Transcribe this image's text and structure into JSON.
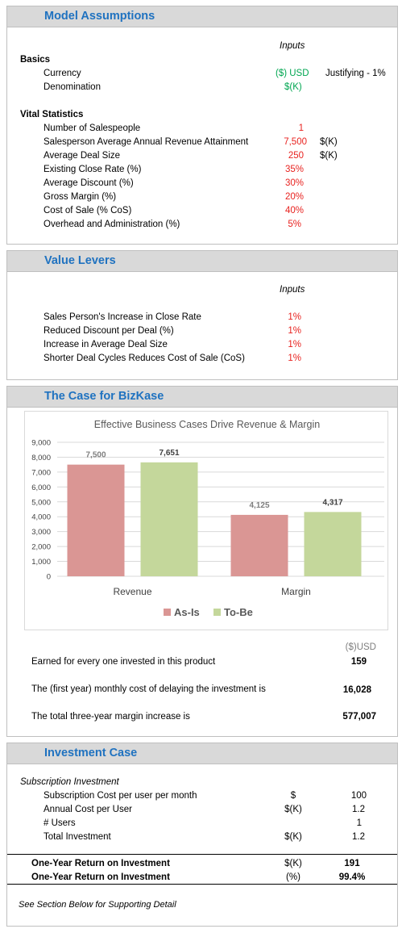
{
  "model": {
    "title": "Model Assumptions",
    "inputs_label": "Inputs",
    "basics_label": "Basics",
    "basics": [
      {
        "label": "Currency",
        "value": "($) USD",
        "note": "Justifying - 1%"
      },
      {
        "label": "Denomination",
        "value": "$(K)",
        "note": ""
      }
    ],
    "vital_label": "Vital Statistics",
    "vital": [
      {
        "label": "Number of Salespeople",
        "value": "1",
        "unit": ""
      },
      {
        "label": "Salesperson Average Annual Revenue Attainment",
        "value": "7,500",
        "unit": "$(K)"
      },
      {
        "label": "Average Deal Size",
        "value": "250",
        "unit": "$(K)"
      },
      {
        "label": "Existing Close Rate (%)",
        "value": "35%",
        "unit": ""
      },
      {
        "label": "Average Discount (%)",
        "value": "30%",
        "unit": ""
      },
      {
        "label": "Gross Margin (%)",
        "value": "20%",
        "unit": ""
      },
      {
        "label": "Cost of Sale (% CoS)",
        "value": "40%",
        "unit": ""
      },
      {
        "label": "Overhead and Administration  (%)",
        "value": "5%",
        "unit": ""
      }
    ]
  },
  "levers": {
    "title": "Value Levers",
    "inputs_label": "Inputs",
    "items": [
      {
        "label": "Sales Person's Increase in Close Rate",
        "value": "1%"
      },
      {
        "label": "Reduced Discount per Deal (%)",
        "value": "1%"
      },
      {
        "label": "Increase in Average Deal Size",
        "value": "1%"
      },
      {
        "label": "Shorter Deal Cycles Reduces Cost of Sale (CoS)",
        "value": "1%"
      }
    ]
  },
  "case": {
    "title": "The Case for BizKase",
    "currency_label": "($)USD",
    "rows": [
      {
        "label": "Earned for every one invested in this product",
        "value": "159"
      },
      {
        "label": "The (first year) monthly cost of delaying the investment is",
        "value": "16,028"
      },
      {
        "label": "The total three-year margin increase is",
        "value": "577,007"
      }
    ]
  },
  "chart_data": {
    "type": "bar",
    "title": "Effective Business Cases Drive Revenue & Margin",
    "categories": [
      "Revenue",
      "Margin"
    ],
    "series": [
      {
        "name": "As-Is",
        "values": [
          7500,
          4125
        ],
        "color": "#da9694"
      },
      {
        "name": "To-Be",
        "values": [
          7651,
          4317
        ],
        "color": "#c4d79b"
      }
    ],
    "data_labels": [
      [
        "7,500",
        "4,125"
      ],
      [
        "7,651",
        "4,317"
      ]
    ],
    "ylim": [
      0,
      9000
    ],
    "yticks": [
      "0",
      "1,000",
      "2,000",
      "3,000",
      "4,000",
      "5,000",
      "6,000",
      "7,000",
      "8,000",
      "9,000"
    ],
    "grid": true,
    "legend_position": "bottom"
  },
  "investment": {
    "title": "Investment Case",
    "subtitle": "Subscription Investment",
    "rows": [
      {
        "label": "Subscription Cost per user per month",
        "unit": "$",
        "value": "100"
      },
      {
        "label": "Annual Cost per User",
        "unit": "$(K)",
        "value": "1.2"
      },
      {
        "label": "# Users",
        "unit": "",
        "value": "1"
      },
      {
        "label": "Total Investment",
        "unit": "$(K)",
        "value": "1.2"
      }
    ],
    "roi": [
      {
        "label": "One-Year Return on Investment",
        "unit": "$(K)",
        "value": "191"
      },
      {
        "label": "One-Year Return on Investment",
        "unit": "(%)",
        "value": "99.4%"
      }
    ],
    "footnote": "See Section Below for Supporting Detail"
  }
}
